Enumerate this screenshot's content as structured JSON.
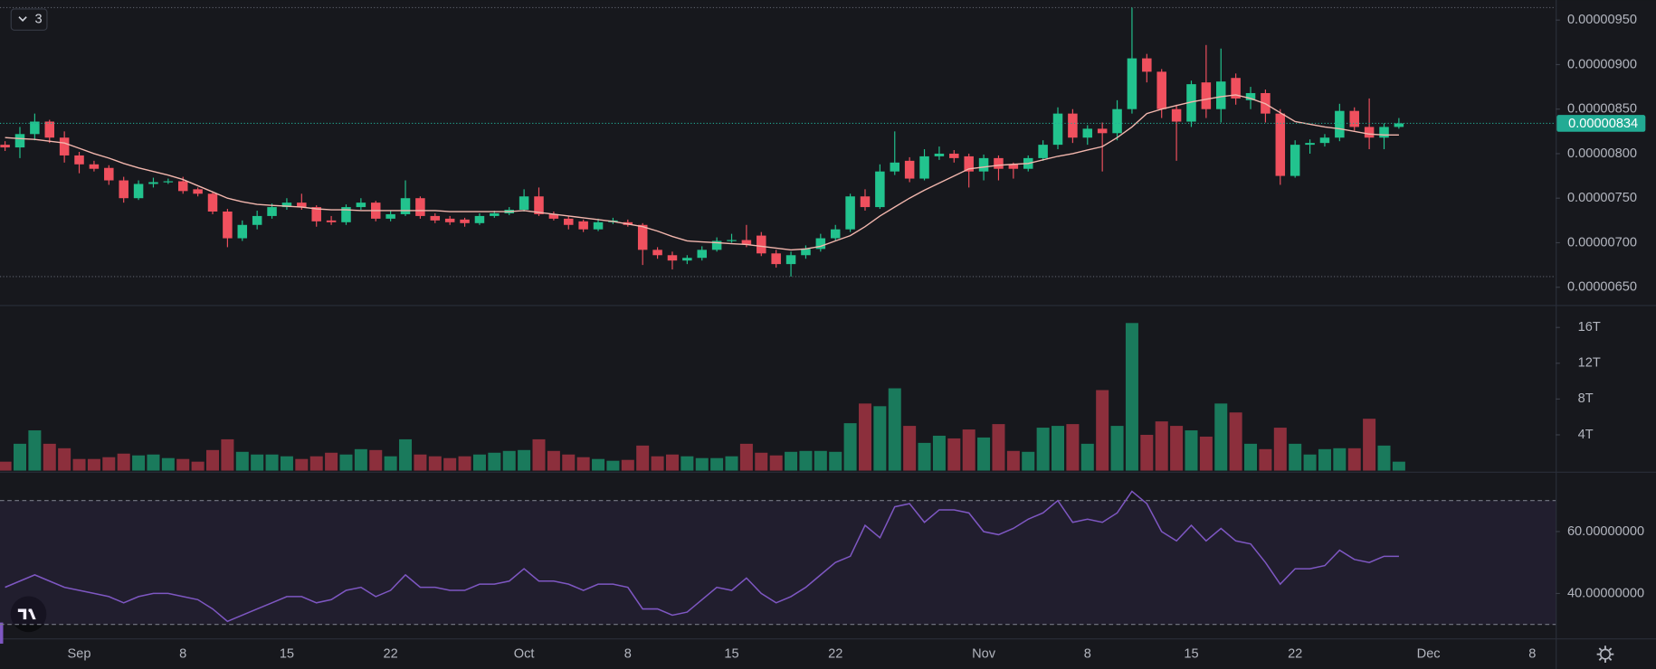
{
  "toolbar": {
    "collapse_count": "3"
  },
  "chart_data": [
    {
      "type": "candlestick",
      "categories": [
        null,
        null,
        null,
        null,
        null,
        "Sep",
        null,
        null,
        null,
        null,
        null,
        null,
        "8",
        null,
        null,
        null,
        null,
        null,
        null,
        "15",
        null,
        null,
        null,
        null,
        null,
        null,
        "22",
        null,
        null,
        null,
        null,
        null,
        null,
        null,
        null,
        "Oct",
        null,
        null,
        null,
        null,
        null,
        null,
        "8",
        null,
        null,
        null,
        null,
        null,
        null,
        "15",
        null,
        null,
        null,
        null,
        null,
        null,
        "22",
        null,
        null,
        null,
        null,
        null,
        null,
        null,
        null,
        null,
        "Nov",
        null,
        null,
        null,
        null,
        null,
        null,
        "8",
        null,
        null,
        null,
        null,
        null,
        null,
        "15",
        null,
        null,
        null,
        null,
        null,
        null,
        "22",
        null,
        null,
        null,
        null,
        null,
        null,
        null,
        null,
        "Dec",
        null,
        null,
        null,
        null,
        null,
        null,
        "8"
      ],
      "open": [
        8.1e-07,
        8.07e-07,
        8.22e-07,
        8.36e-07,
        8.18e-07,
        7.98e-07,
        7.88e-07,
        7.84e-07,
        7.7e-07,
        7.5e-07,
        7.66e-07,
        7.68e-07,
        7.69e-07,
        7.6e-07,
        7.55e-07,
        7.35e-07,
        7.05e-07,
        7.2e-07,
        7.3e-07,
        7.4e-07,
        7.45e-07,
        7.4e-07,
        7.25e-07,
        7.23e-07,
        7.4e-07,
        7.45e-07,
        7.27e-07,
        7.32e-07,
        7.5e-07,
        7.3e-07,
        7.27e-07,
        7.26e-07,
        7.22e-07,
        7.3e-07,
        7.33e-07,
        7.37e-07,
        7.52e-07,
        7.32e-07,
        7.27e-07,
        7.24e-07,
        7.15e-07,
        7.23e-07,
        7.23e-07,
        7.2e-07,
        6.92e-07,
        6.86e-07,
        6.8e-07,
        6.83e-07,
        6.92e-07,
        7.02e-07,
        7.03e-07,
        7.08e-07,
        6.88e-07,
        6.76e-07,
        6.86e-07,
        6.93e-07,
        7.05e-07,
        7.15e-07,
        7.52e-07,
        7.4e-07,
        7.8e-07,
        7.92e-07,
        7.72e-07,
        7.97e-07,
        8e-07,
        7.97e-07,
        7.8e-07,
        7.95e-07,
        7.88e-07,
        7.83e-07,
        7.95e-07,
        8.1e-07,
        8.45e-07,
        8.18e-07,
        8.28e-07,
        8.23e-07,
        8.5e-07,
        9.07e-07,
        8.92e-07,
        8.5e-07,
        8.36e-07,
        8.8e-07,
        8.5e-07,
        8.85e-07,
        8.6e-07,
        8.68e-07,
        8.45e-07,
        7.75e-07,
        8.1e-07,
        8.12e-07,
        8.18e-07,
        8.48e-07,
        8.3e-07,
        8.18e-07,
        8.3e-07,
        null,
        null,
        null,
        null,
        null,
        null,
        null,
        null,
        null
      ],
      "high": [
        8.14e-07,
        8.3e-07,
        8.45e-07,
        8.38e-07,
        8.25e-07,
        8.02e-07,
        7.92e-07,
        7.87e-07,
        7.74e-07,
        7.7e-07,
        7.73e-07,
        7.72e-07,
        7.74e-07,
        7.62e-07,
        7.57e-07,
        7.38e-07,
        7.25e-07,
        7.36e-07,
        7.44e-07,
        7.5e-07,
        7.55e-07,
        7.42e-07,
        7.3e-07,
        7.43e-07,
        7.5e-07,
        7.47e-07,
        7.36e-07,
        7.7e-07,
        7.52e-07,
        7.33e-07,
        7.3e-07,
        7.28e-07,
        7.33e-07,
        7.36e-07,
        7.4e-07,
        7.6e-07,
        7.62e-07,
        7.35e-07,
        7.3e-07,
        7.26e-07,
        7.27e-07,
        7.28e-07,
        7.26e-07,
        7.22e-07,
        6.95e-07,
        6.9e-07,
        6.86e-07,
        6.96e-07,
        7.06e-07,
        7.1e-07,
        7.2e-07,
        7.12e-07,
        6.92e-07,
        6.9e-07,
        6.97e-07,
        7.1e-07,
        7.2e-07,
        7.55e-07,
        7.6e-07,
        7.88e-07,
        8.25e-07,
        7.96e-07,
        8.05e-07,
        8.08e-07,
        8.04e-07,
        8e-07,
        7.99e-07,
        7.98e-07,
        7.9e-07,
        7.98e-07,
        8.15e-07,
        8.52e-07,
        8.5e-07,
        8.32e-07,
        8.35e-07,
        8.6e-07,
        9.64e-07,
        9.12e-07,
        8.95e-07,
        8.55e-07,
        8.82e-07,
        9.22e-07,
        9.18e-07,
        8.9e-07,
        8.75e-07,
        8.72e-07,
        8.5e-07,
        8.15e-07,
        8.16e-07,
        8.22e-07,
        8.56e-07,
        8.52e-07,
        8.62e-07,
        8.34e-07,
        8.4e-07,
        null,
        null,
        null,
        null,
        null,
        null,
        null,
        null,
        null
      ],
      "low": [
        8.03e-07,
        7.95e-07,
        8.15e-07,
        8.12e-07,
        7.9e-07,
        7.78e-07,
        7.8e-07,
        7.65e-07,
        7.45e-07,
        7.48e-07,
        7.62e-07,
        7.66e-07,
        7.55e-07,
        7.52e-07,
        7.32e-07,
        6.95e-07,
        7.02e-07,
        7.15e-07,
        7.27e-07,
        7.37e-07,
        7.37e-07,
        7.18e-07,
        7.2e-07,
        7.2e-07,
        7.37e-07,
        7.24e-07,
        7.24e-07,
        7.3e-07,
        7.27e-07,
        7.22e-07,
        7.2e-07,
        7.18e-07,
        7.2e-07,
        7.28e-07,
        7.31e-07,
        7.35e-07,
        7.3e-07,
        7.25e-07,
        7.15e-07,
        7.12e-07,
        7.13e-07,
        7.21e-07,
        7.18e-07,
        6.75e-07,
        6.82e-07,
        6.7e-07,
        6.76e-07,
        6.8e-07,
        6.9e-07,
        7e-07,
        6.95e-07,
        6.85e-07,
        6.72e-07,
        6.62e-07,
        6.82e-07,
        6.9e-07,
        7.02e-07,
        7.12e-07,
        7.36e-07,
        7.38e-07,
        7.76e-07,
        7.68e-07,
        7.7e-07,
        7.93e-07,
        7.9e-07,
        7.62e-07,
        7.7e-07,
        7.7e-07,
        7.72e-07,
        7.8e-07,
        7.92e-07,
        8.05e-07,
        8.12e-07,
        8.1e-07,
        7.8e-07,
        8.15e-07,
        8.45e-07,
        8.8e-07,
        8.4e-07,
        7.92e-07,
        8.3e-07,
        8.4e-07,
        8.35e-07,
        8.55e-07,
        8.5e-07,
        8.35e-07,
        7.65e-07,
        7.73e-07,
        8e-07,
        8.08e-07,
        8.14e-07,
        8.26e-07,
        8.05e-07,
        8.05e-07,
        8.28e-07,
        null,
        null,
        null,
        null,
        null,
        null,
        null,
        null,
        null
      ],
      "close": [
        8.07e-07,
        8.22e-07,
        8.36e-07,
        8.18e-07,
        7.98e-07,
        7.88e-07,
        7.83e-07,
        7.7e-07,
        7.5e-07,
        7.66e-07,
        7.68e-07,
        7.69e-07,
        7.58e-07,
        7.55e-07,
        7.35e-07,
        7.05e-07,
        7.2e-07,
        7.3e-07,
        7.4e-07,
        7.45e-07,
        7.4e-07,
        7.24e-07,
        7.23e-07,
        7.4e-07,
        7.45e-07,
        7.27e-07,
        7.32e-07,
        7.5e-07,
        7.3e-07,
        7.25e-07,
        7.23e-07,
        7.22e-07,
        7.3e-07,
        7.33e-07,
        7.37e-07,
        7.52e-07,
        7.32e-07,
        7.27e-07,
        7.2e-07,
        7.15e-07,
        7.23e-07,
        7.25e-07,
        7.2e-07,
        6.92e-07,
        6.86e-07,
        6.8e-07,
        6.83e-07,
        6.92e-07,
        7.02e-07,
        7.03e-07,
        6.98e-07,
        6.88e-07,
        6.76e-07,
        6.86e-07,
        6.93e-07,
        7.05e-07,
        7.15e-07,
        7.52e-07,
        7.4e-07,
        7.8e-07,
        7.9e-07,
        7.72e-07,
        7.97e-07,
        8e-07,
        7.95e-07,
        7.8e-07,
        7.95e-07,
        7.83e-07,
        7.83e-07,
        7.95e-07,
        8.1e-07,
        8.45e-07,
        8.18e-07,
        8.28e-07,
        8.23e-07,
        8.5e-07,
        9.07e-07,
        8.92e-07,
        8.5e-07,
        8.36e-07,
        8.78e-07,
        8.5e-07,
        8.81e-07,
        8.62e-07,
        8.68e-07,
        8.45e-07,
        7.75e-07,
        8.1e-07,
        8.12e-07,
        8.18e-07,
        8.48e-07,
        8.3e-07,
        8.18e-07,
        8.3e-07,
        8.34e-07,
        null,
        null,
        null,
        null,
        null,
        null,
        null,
        null,
        null
      ],
      "up_color": "#22c38e",
      "down_color": "#f0505e",
      "ma": {
        "color": "#f2b6ad",
        "values": [
          8.18e-07,
          8.17e-07,
          8.16e-07,
          8.14e-07,
          8.12e-07,
          8.06e-07,
          8e-07,
          7.95e-07,
          7.89e-07,
          7.84e-07,
          7.8e-07,
          7.76e-07,
          7.71e-07,
          7.64e-07,
          7.57e-07,
          7.5e-07,
          7.46e-07,
          7.43e-07,
          7.42e-07,
          7.41e-07,
          7.4e-07,
          7.38e-07,
          7.37e-07,
          7.37e-07,
          7.36e-07,
          7.36e-07,
          7.36e-07,
          7.36e-07,
          7.36e-07,
          7.36e-07,
          7.35e-07,
          7.35e-07,
          7.35e-07,
          7.35e-07,
          7.35e-07,
          7.36e-07,
          7.34e-07,
          7.32e-07,
          7.3e-07,
          7.28e-07,
          7.26e-07,
          7.24e-07,
          7.21e-07,
          7.18e-07,
          7.13e-07,
          7.07e-07,
          7.02e-07,
          7.01e-07,
          7e-07,
          6.99e-07,
          6.98e-07,
          6.96e-07,
          6.94e-07,
          6.92e-07,
          6.93e-07,
          6.96e-07,
          7.02e-07,
          7.08e-07,
          7.18e-07,
          7.3e-07,
          7.4e-07,
          7.5e-07,
          7.59e-07,
          7.67e-07,
          7.75e-07,
          7.83e-07,
          7.85e-07,
          7.87e-07,
          7.88e-07,
          7.89e-07,
          7.93e-07,
          7.97e-07,
          8e-07,
          8.04e-07,
          8.08e-07,
          8.18e-07,
          8.3e-07,
          8.45e-07,
          8.5e-07,
          8.54e-07,
          8.58e-07,
          8.61e-07,
          8.64e-07,
          8.66e-07,
          8.62e-07,
          8.56e-07,
          8.46e-07,
          8.36e-07,
          8.33e-07,
          8.3e-07,
          8.28e-07,
          8.25e-07,
          8.22e-07,
          8.21e-07,
          8.21e-07,
          null,
          null,
          null,
          null,
          null,
          null,
          null,
          null,
          null
        ]
      },
      "last_price": {
        "value": 8.34e-07,
        "label": "0.00000834",
        "color": "#22ab94"
      },
      "ylim": [
        6.313e-07,
        9.725e-07
      ],
      "yticks": [
        {
          "value": 6.5e-07,
          "label": "0.00000650"
        },
        {
          "value": 7e-07,
          "label": "0.00000700"
        },
        {
          "value": 7.5e-07,
          "label": "0.00000750"
        },
        {
          "value": 8e-07,
          "label": "0.00000800"
        },
        {
          "value": 8.5e-07,
          "label": "0.00000850"
        },
        {
          "value": 9e-07,
          "label": "0.00000900"
        },
        {
          "value": 9.5e-07,
          "label": "0.00000950"
        }
      ]
    },
    {
      "type": "bar",
      "values": [
        1.0,
        3.0,
        4.5,
        3.0,
        2.5,
        1.3,
        1.3,
        1.5,
        1.9,
        1.7,
        1.8,
        1.4,
        1.3,
        1.0,
        2.3,
        3.5,
        2.1,
        1.8,
        1.8,
        1.6,
        1.3,
        1.6,
        2.0,
        1.8,
        2.4,
        2.3,
        1.6,
        3.5,
        1.8,
        1.6,
        1.4,
        1.6,
        1.8,
        2.0,
        2.2,
        2.3,
        3.5,
        2.2,
        1.8,
        1.5,
        1.3,
        1.1,
        1.2,
        2.8,
        1.6,
        1.8,
        1.6,
        1.4,
        1.4,
        1.6,
        3.0,
        2.0,
        1.7,
        2.1,
        2.2,
        2.2,
        2.1,
        5.3,
        7.5,
        7.2,
        9.2,
        5.0,
        3.1,
        3.9,
        3.6,
        4.6,
        3.7,
        5.2,
        2.2,
        2.1,
        4.8,
        5.0,
        5.2,
        3.0,
        9.0,
        5.0,
        16.5,
        4.0,
        5.5,
        5.0,
        4.5,
        3.8,
        7.5,
        6.5,
        3.0,
        2.4,
        4.8,
        3.0,
        1.8,
        2.4,
        2.5,
        2.5,
        5.8,
        2.8,
        1.0,
        null,
        null,
        null,
        null,
        null,
        null,
        null,
        null,
        null
      ],
      "up_color": "#1a7a5c",
      "down_color": "#8c2f3c",
      "ylim": [
        0,
        18.4
      ],
      "yticks": [
        {
          "value": 4,
          "label": "4T"
        },
        {
          "value": 8,
          "label": "8T"
        },
        {
          "value": 12,
          "label": "12T"
        },
        {
          "value": 16,
          "label": "16T"
        }
      ]
    },
    {
      "type": "line",
      "values": [
        42,
        44,
        46,
        44,
        42,
        41,
        40,
        39,
        37,
        39,
        40,
        40,
        39,
        38,
        35,
        31,
        33,
        35,
        37,
        39,
        39,
        37,
        38,
        41,
        42,
        39,
        41,
        46,
        42,
        42,
        41,
        41,
        43,
        43,
        44,
        48,
        44,
        44,
        43,
        41,
        43,
        43,
        42,
        35,
        35,
        33,
        34,
        38,
        42,
        41,
        45,
        40,
        37,
        39,
        42,
        46,
        50,
        52,
        62,
        58,
        68,
        69,
        63,
        67,
        67,
        66,
        60,
        59,
        61,
        64,
        66,
        70,
        63,
        64,
        63,
        66,
        73,
        69,
        60,
        57,
        62,
        57,
        61,
        57,
        56,
        50,
        43,
        48,
        48,
        49,
        54,
        51,
        50,
        52,
        52,
        null,
        null,
        null,
        null,
        null,
        null,
        null,
        null,
        null
      ],
      "color": "#7e57c2",
      "bands": [
        30,
        70
      ],
      "ylim": [
        25.5,
        79
      ],
      "yticks": [
        {
          "value": 40,
          "label": "40.00000000"
        },
        {
          "value": 60,
          "label": "60.00000000"
        }
      ]
    }
  ]
}
